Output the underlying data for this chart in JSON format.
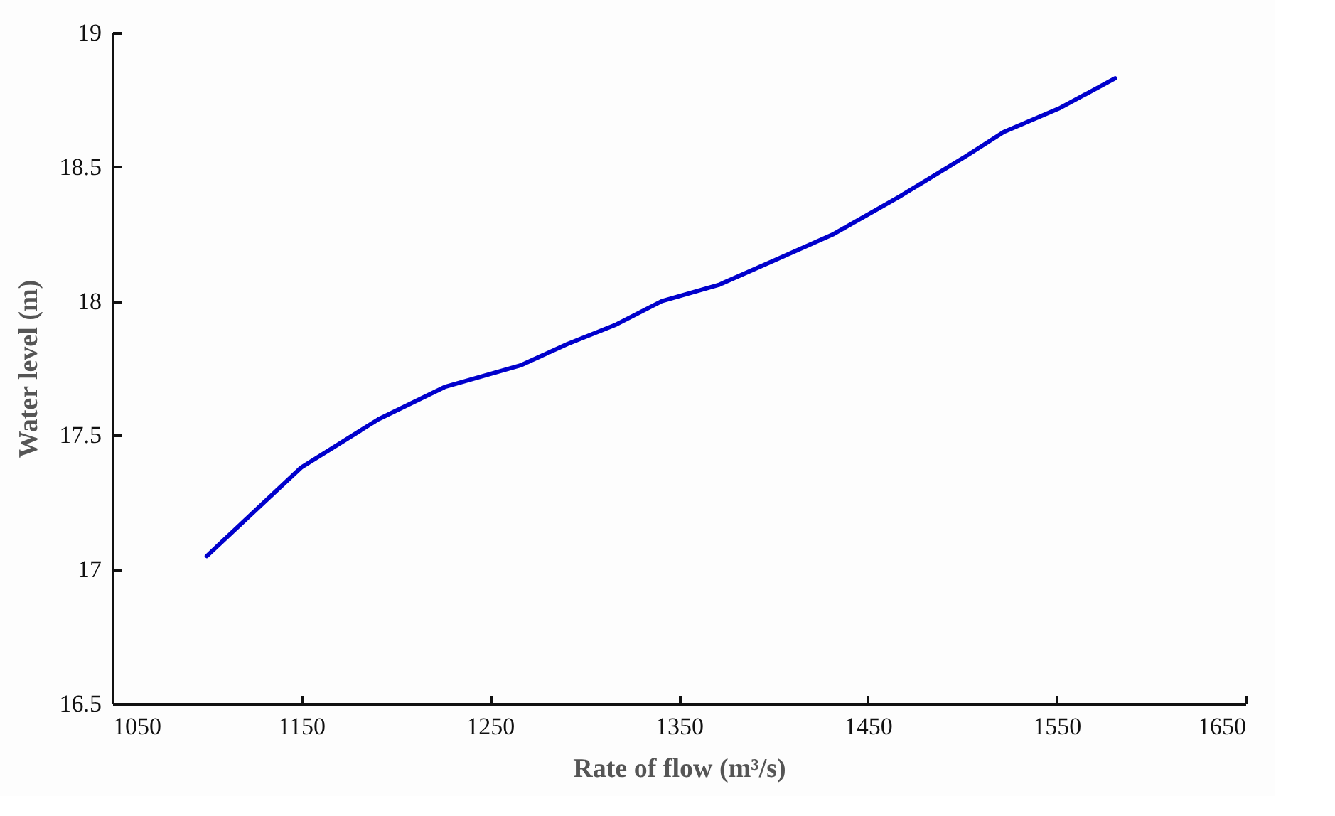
{
  "chart_data": {
    "type": "line",
    "xlabel": "Rate of flow (m³/s)",
    "ylabel": "Water level (m)",
    "x": [
      1100,
      1150,
      1191,
      1226,
      1266,
      1291,
      1316,
      1341,
      1371,
      1400,
      1432,
      1467,
      1502,
      1522,
      1552,
      1581
    ],
    "series": [
      {
        "color": "#0000cc",
        "values": [
          17.05,
          17.38,
          17.56,
          17.68,
          17.76,
          17.84,
          17.91,
          18.0,
          18.06,
          18.15,
          18.25,
          18.39,
          18.54,
          18.63,
          18.72,
          18.83
        ]
      }
    ],
    "xlim": [
      1050,
      1650
    ],
    "xticks": [
      1050,
      1150,
      1250,
      1350,
      1450,
      1550,
      1650
    ],
    "ylim": [
      16.5,
      19
    ],
    "yticks": [
      16.5,
      17,
      17.5,
      18,
      18.5,
      19
    ],
    "grid": false,
    "marker": "none",
    "line_style": "solid"
  }
}
